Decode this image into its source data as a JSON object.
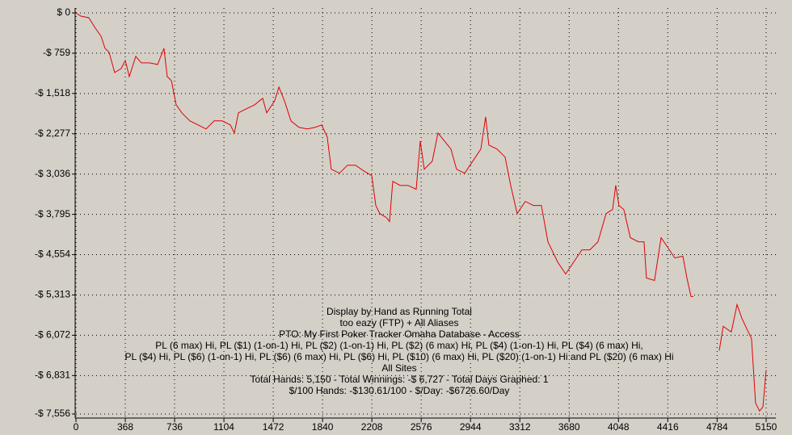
{
  "chart_data": {
    "type": "line",
    "annotations": [
      "Display by Hand as Running Total",
      "too eazy (FTP) + All Aliases",
      "PTO: My First Poker Tracker Omaha Database - Access",
      "PL (6 max) Hi, PL ($1) (1-on-1) Hi, PL ($2) (1-on-1) Hi, PL ($2) (6 max) Hi, PL ($4) (1-on-1) Hi, PL ($4) (6 max) Hi,",
      "PL ($4) Hi, PL ($6) (1-on-1) Hi, PL ($6) (6 max) Hi, PL ($6) Hi, PL ($10) (6 max) Hi, PL ($20) (1-on-1) Hi and PL ($20) (6 max) Hi",
      "All Sites",
      "Total Hands: 5,150 - Total Winnings: -$ 6,727 - Total Days Graphed: 1",
      "$/100 Hands: -$130.61/100 - $/Day: -$6726.60/Day"
    ],
    "x": [
      0,
      36,
      96,
      145,
      187,
      217,
      247,
      289,
      338,
      368,
      398,
      446,
      488,
      549,
      609,
      657,
      681,
      712,
      748,
      790,
      850,
      911,
      971,
      1031,
      1091,
      1152,
      1182,
      1212,
      1272,
      1333,
      1393,
      1423,
      1483,
      1514,
      1556,
      1604,
      1664,
      1725,
      1785,
      1833,
      1875,
      1905,
      1966,
      2026,
      2086,
      2147,
      2207,
      2237,
      2267,
      2316,
      2340,
      2364,
      2418,
      2478,
      2539,
      2569,
      2599,
      2659,
      2701,
      2750,
      2798,
      2840,
      2900,
      2961,
      3021,
      3057,
      3081,
      3142,
      3202,
      3244,
      3292,
      3353,
      3413,
      3473,
      3522,
      3594,
      3654,
      3714,
      3775,
      3835,
      3895,
      3956,
      4004,
      4028,
      4052,
      4088,
      4137,
      4197,
      4239,
      4257,
      4317,
      4366,
      4408,
      4468,
      4529,
      4559,
      4589,
      4607,
      4700,
      4800,
      4830,
      4890,
      4933,
      4969,
      5011,
      5041,
      5071,
      5101,
      5126,
      5150
    ],
    "values": [
      0,
      -61,
      -91,
      -288,
      -440,
      -668,
      -744,
      -1123,
      -1047,
      -896,
      -1199,
      -820,
      -941,
      -941,
      -972,
      -668,
      -1199,
      -1275,
      -1731,
      -1882,
      -2034,
      -2110,
      -2186,
      -2034,
      -2034,
      -2110,
      -2262,
      -1882,
      -1806,
      -1731,
      -1609,
      -1882,
      -1655,
      -1397,
      -1655,
      -2034,
      -2156,
      -2186,
      -2156,
      -2110,
      -2338,
      -2945,
      -3021,
      -2869,
      -2869,
      -2975,
      -3066,
      -3628,
      -3780,
      -3856,
      -3932,
      -3173,
      -3249,
      -3249,
      -3324,
      -2414,
      -2945,
      -2793,
      -2262,
      -2414,
      -2565,
      -2945,
      -3021,
      -2793,
      -2565,
      -1958,
      -2490,
      -2565,
      -2717,
      -3249,
      -3780,
      -3552,
      -3628,
      -3628,
      -4311,
      -4691,
      -4918,
      -4691,
      -4463,
      -4463,
      -4311,
      -3780,
      -3704,
      -3249,
      -3628,
      -3704,
      -4235,
      -4311,
      -4311,
      -4994,
      -5040,
      -4235,
      -4387,
      -4615,
      -4584,
      -4994,
      -5343,
      -5343,
      null,
      -6360,
      -5905,
      -6011,
      -5495,
      -5753,
      -5981,
      -6133,
      -7347,
      -7499,
      -7423,
      -6727
    ],
    "color": "#e00000",
    "xlim": [
      0,
      5150
    ],
    "xticks": [
      0,
      368,
      736,
      1104,
      1472,
      1840,
      2208,
      2576,
      2944,
      3312,
      3680,
      4048,
      4416,
      4784,
      5150
    ],
    "ylim": [
      -7556,
      0
    ],
    "yticks": [
      {
        "value": 0,
        "label": "$ 0"
      },
      {
        "value": -759,
        "label": "-$ 759"
      },
      {
        "value": -1518,
        "label": "-$ 1,518"
      },
      {
        "value": -2277,
        "label": "-$ 2,277"
      },
      {
        "value": -3036,
        "label": "-$ 3,036"
      },
      {
        "value": -3795,
        "label": "-$ 3,795"
      },
      {
        "value": -4554,
        "label": "-$ 4,554"
      },
      {
        "value": -5313,
        "label": "-$ 5,313"
      },
      {
        "value": -6072,
        "label": "-$ 6,072"
      },
      {
        "value": -6831,
        "label": "-$ 6,831"
      },
      {
        "value": -7556,
        "label": "-$ 7,556"
      }
    ],
    "grid": true
  }
}
